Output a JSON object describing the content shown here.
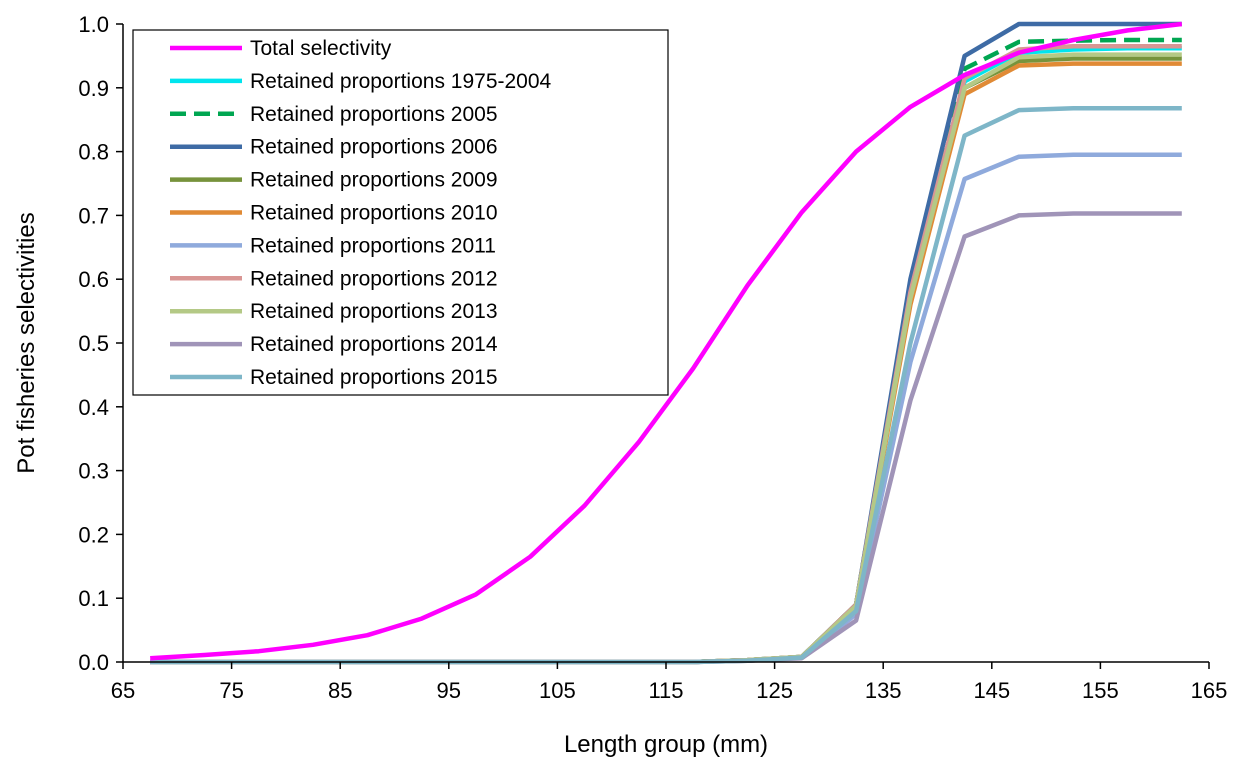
{
  "chart_data": {
    "type": "line",
    "xlabel": "Length group (mm)",
    "ylabel": "Pot fisheries selectivities",
    "xlim": [
      65,
      165
    ],
    "ylim": [
      0.0,
      1.0
    ],
    "x_ticks": [
      "65",
      "75",
      "85",
      "95",
      "105",
      "115",
      "125",
      "135",
      "145",
      "155",
      "165"
    ],
    "y_ticks": [
      "0.0",
      "0.1",
      "0.2",
      "0.3",
      "0.4",
      "0.5",
      "0.6",
      "0.7",
      "0.8",
      "0.9",
      "1.0"
    ],
    "grid": false,
    "legend_position": "top-left",
    "x": [
      67.5,
      72.5,
      77.5,
      82.5,
      87.5,
      92.5,
      97.5,
      102.5,
      107.5,
      112.5,
      117.5,
      122.5,
      127.5,
      132.5,
      137.5,
      142.5,
      147.5,
      152.5,
      157.5,
      162.5
    ],
    "series": [
      {
        "name": "Total selectivity",
        "color": "#FF00FF",
        "dash": false,
        "values": [
          0.006,
          0.011,
          0.017,
          0.027,
          0.042,
          0.068,
          0.106,
          0.165,
          0.245,
          0.345,
          0.46,
          0.59,
          0.705,
          0.8,
          0.87,
          0.92,
          0.955,
          0.975,
          0.99,
          1.0
        ]
      },
      {
        "name": "Retained proportions 1975-2004",
        "color": "#00E5EE",
        "dash": false,
        "values": [
          0,
          0,
          0,
          0,
          0,
          0,
          0,
          0,
          0,
          0,
          0,
          0.003,
          0.008,
          0.09,
          0.58,
          0.91,
          0.955,
          0.96,
          0.962,
          0.962
        ]
      },
      {
        "name": "Retained proportions 2005",
        "color": "#00A651",
        "dash": true,
        "values": [
          0,
          0,
          0,
          0,
          0,
          0,
          0,
          0,
          0,
          0,
          0,
          0.003,
          0.008,
          0.09,
          0.59,
          0.93,
          0.972,
          0.974,
          0.975,
          0.975
        ]
      },
      {
        "name": "Retained proportions 2006",
        "color": "#3E6BA5",
        "dash": false,
        "values": [
          0,
          0,
          0,
          0,
          0,
          0,
          0,
          0,
          0,
          0,
          0,
          0.003,
          0.008,
          0.09,
          0.6,
          0.95,
          1.0,
          1.0,
          1.0,
          1.0
        ]
      },
      {
        "name": "Retained proportions 2009",
        "color": "#77933C",
        "dash": false,
        "values": [
          0,
          0,
          0,
          0,
          0,
          0,
          0,
          0,
          0,
          0,
          0,
          0.003,
          0.008,
          0.09,
          0.57,
          0.9,
          0.942,
          0.946,
          0.946,
          0.946
        ]
      },
      {
        "name": "Retained proportions 2010",
        "color": "#E08A35",
        "dash": false,
        "values": [
          0,
          0,
          0,
          0,
          0,
          0,
          0,
          0,
          0,
          0,
          0,
          0.003,
          0.008,
          0.088,
          0.56,
          0.89,
          0.935,
          0.938,
          0.938,
          0.938
        ]
      },
      {
        "name": "Retained proportions 2011",
        "color": "#8FAADC",
        "dash": false,
        "values": [
          0,
          0,
          0,
          0,
          0,
          0,
          0,
          0,
          0,
          0,
          0,
          0.002,
          0.007,
          0.075,
          0.47,
          0.757,
          0.792,
          0.795,
          0.795,
          0.795
        ]
      },
      {
        "name": "Retained proportions 2012",
        "color": "#D99694",
        "dash": false,
        "values": [
          0,
          0,
          0,
          0,
          0,
          0,
          0,
          0,
          0,
          0,
          0,
          0.003,
          0.008,
          0.09,
          0.58,
          0.915,
          0.96,
          0.965,
          0.965,
          0.965
        ]
      },
      {
        "name": "Retained proportions 2013",
        "color": "#B4C986",
        "dash": false,
        "values": [
          0,
          0,
          0,
          0,
          0,
          0,
          0,
          0,
          0,
          0,
          0,
          0.003,
          0.008,
          0.088,
          0.57,
          0.9,
          0.948,
          0.952,
          0.952,
          0.952
        ]
      },
      {
        "name": "Retained proportions 2014",
        "color": "#A094B8",
        "dash": false,
        "values": [
          0,
          0,
          0,
          0,
          0,
          0,
          0,
          0,
          0,
          0,
          0,
          0.002,
          0.006,
          0.065,
          0.41,
          0.667,
          0.7,
          0.703,
          0.703,
          0.703
        ]
      },
      {
        "name": "Retained proportions 2015",
        "color": "#7EB6C8",
        "dash": false,
        "values": [
          0,
          0,
          0,
          0,
          0,
          0,
          0,
          0,
          0,
          0,
          0,
          0.002,
          0.007,
          0.08,
          0.5,
          0.825,
          0.865,
          0.868,
          0.868,
          0.868
        ]
      }
    ]
  }
}
